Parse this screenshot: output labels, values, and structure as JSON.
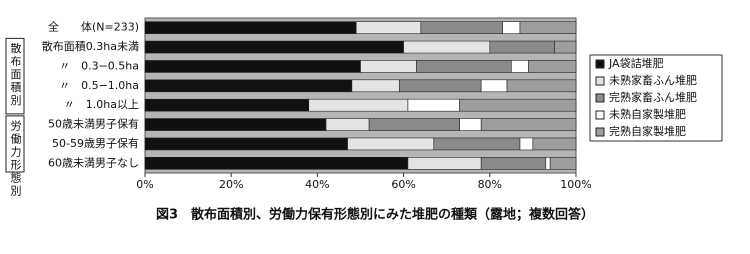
{
  "chart_data": {
    "type": "stacked-barh",
    "title": "図3　散布面積別、労働力保有形態別にみた堆肥の種類（露地；複数回答）",
    "groups": [
      {
        "label": "散布面積別"
      },
      {
        "label": "労働力形態別"
      }
    ],
    "categories": [
      "全　　体(N=233)",
      "散布面積0.3ha未満",
      "〃　0.3−0.5ha",
      "〃　0.5−1.0ha",
      "〃　1.0ha以上",
      "50歳未満男子保有",
      "50-59歳男子保有",
      "60歳未満男子なし"
    ],
    "series": [
      {
        "name": "JA袋詰堆肥",
        "color": "#111111",
        "values": [
          49,
          60,
          50,
          48,
          38,
          42,
          47,
          61
        ]
      },
      {
        "name": "未熟家畜ふん堆肥",
        "color": "#e4e4e4",
        "values": [
          15,
          20,
          13,
          11,
          23,
          10,
          20,
          17
        ]
      },
      {
        "name": "完熟家畜ふん堆肥",
        "color": "#8a8a8a",
        "values": [
          19,
          15,
          22,
          19,
          0,
          21,
          20,
          15
        ]
      },
      {
        "name": "未熟自家製堆肥",
        "color": "#ffffff",
        "values": [
          4,
          0,
          4,
          6,
          12,
          5,
          3,
          1
        ]
      },
      {
        "name": "完熟自家製堆肥",
        "color": "#9e9e9e",
        "values": [
          13,
          5,
          11,
          16,
          27,
          22,
          10,
          6
        ]
      }
    ],
    "xlim": [
      0,
      100
    ],
    "xticks": [
      {
        "value": 0,
        "label": "0%"
      },
      {
        "value": 20,
        "label": "20%"
      },
      {
        "value": 40,
        "label": "40%"
      },
      {
        "value": 60,
        "label": "60%"
      },
      {
        "value": 80,
        "label": "80%"
      },
      {
        "value": 100,
        "label": "100%"
      }
    ]
  }
}
